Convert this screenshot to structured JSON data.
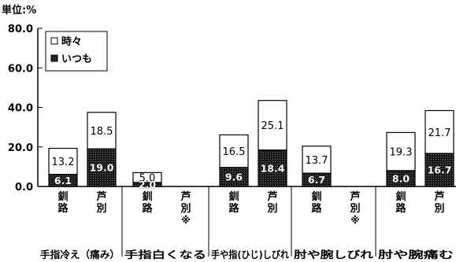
{
  "chart_data": {
    "type": "bar",
    "stacked": true,
    "unit_label": "単位:%",
    "y_ticks": [
      "80.0",
      "60.0",
      "40.0",
      "20.0",
      "0.0"
    ],
    "ylim": [
      0,
      80
    ],
    "legend": {
      "position": "top-left",
      "items": [
        {
          "key": "tokidoki",
          "label": "時々",
          "color": "#ffffff"
        },
        {
          "key": "itsumo",
          "label": "いつも",
          "color": "#222222"
        }
      ]
    },
    "groups": [
      {
        "name": "手指冷え（痛み）",
        "bars": [
          {
            "label": "釧路",
            "itsumo": 6.1,
            "tokidoki": 13.2
          },
          {
            "label": "芦別",
            "itsumo": 19.0,
            "tokidoki": 18.5
          }
        ]
      },
      {
        "name": "手指白くなる",
        "bars": [
          {
            "label": "釧路",
            "itsumo": 2.0,
            "tokidoki": 5.0
          },
          {
            "label": "芦別※",
            "itsumo": null,
            "tokidoki": null
          }
        ]
      },
      {
        "name": "手や指(ひじ)しびれ",
        "bars": [
          {
            "label": "釧路",
            "itsumo": 9.6,
            "tokidoki": 16.5
          },
          {
            "label": "芦別",
            "itsumo": 18.4,
            "tokidoki": 25.1
          }
        ]
      },
      {
        "name": "肘や腕しびれ",
        "bars": [
          {
            "label": "釧路",
            "itsumo": 6.7,
            "tokidoki": 13.7
          },
          {
            "label": "芦別※",
            "itsumo": null,
            "tokidoki": null
          }
        ]
      },
      {
        "name": "肘や腕痛む",
        "bars": [
          {
            "label": "釧路",
            "itsumo": 8.0,
            "tokidoki": 19.3
          },
          {
            "label": "芦別",
            "itsumo": 16.7,
            "tokidoki": 21.7
          }
        ]
      }
    ]
  }
}
